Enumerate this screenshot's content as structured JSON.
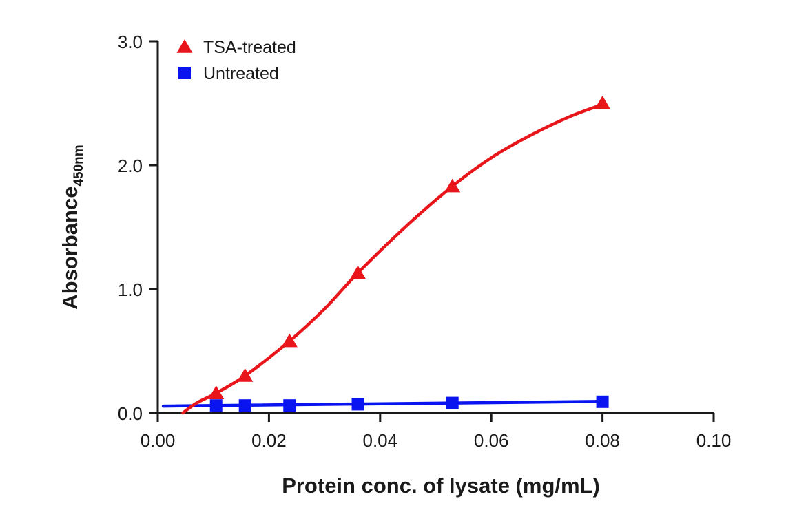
{
  "chart_data": {
    "type": "line",
    "title": "",
    "xlabel": "Protein conc. of lysate (mg/mL)",
    "ylabel": {
      "main": "Absorbance",
      "sub": "450nm"
    },
    "xlim": [
      0,
      0.1
    ],
    "ylim": [
      0,
      3.0
    ],
    "x_ticks": [
      "0.00",
      "0.02",
      "0.04",
      "0.06",
      "0.08",
      "0.10"
    ],
    "y_ticks": [
      "0.0",
      "1.0",
      "2.0",
      "3.0"
    ],
    "legend_position": "top-left",
    "grid": false,
    "series": [
      {
        "name": "TSA-treated",
        "marker": "triangle",
        "color": "#e8161b",
        "x": [
          0.0105,
          0.0157,
          0.0237,
          0.036,
          0.053,
          0.08
        ],
        "y": [
          0.16,
          0.3,
          0.58,
          1.13,
          1.83,
          2.5
        ],
        "curve": {
          "x": [
            0.0045,
            0.007,
            0.0105,
            0.0157,
            0.0237,
            0.03,
            0.036,
            0.045,
            0.053,
            0.06,
            0.067,
            0.074,
            0.08
          ],
          "y": [
            0.0,
            0.08,
            0.16,
            0.3,
            0.58,
            0.84,
            1.13,
            1.52,
            1.83,
            2.06,
            2.24,
            2.39,
            2.49
          ]
        }
      },
      {
        "name": "Untreated",
        "marker": "square",
        "color": "#0a14f0",
        "x": [
          0.0105,
          0.0157,
          0.0237,
          0.036,
          0.053,
          0.08
        ],
        "y": [
          0.06,
          0.06,
          0.06,
          0.07,
          0.08,
          0.09
        ],
        "curve": {
          "x": [
            0.001,
            0.08
          ],
          "y": [
            0.055,
            0.093
          ]
        }
      }
    ]
  }
}
